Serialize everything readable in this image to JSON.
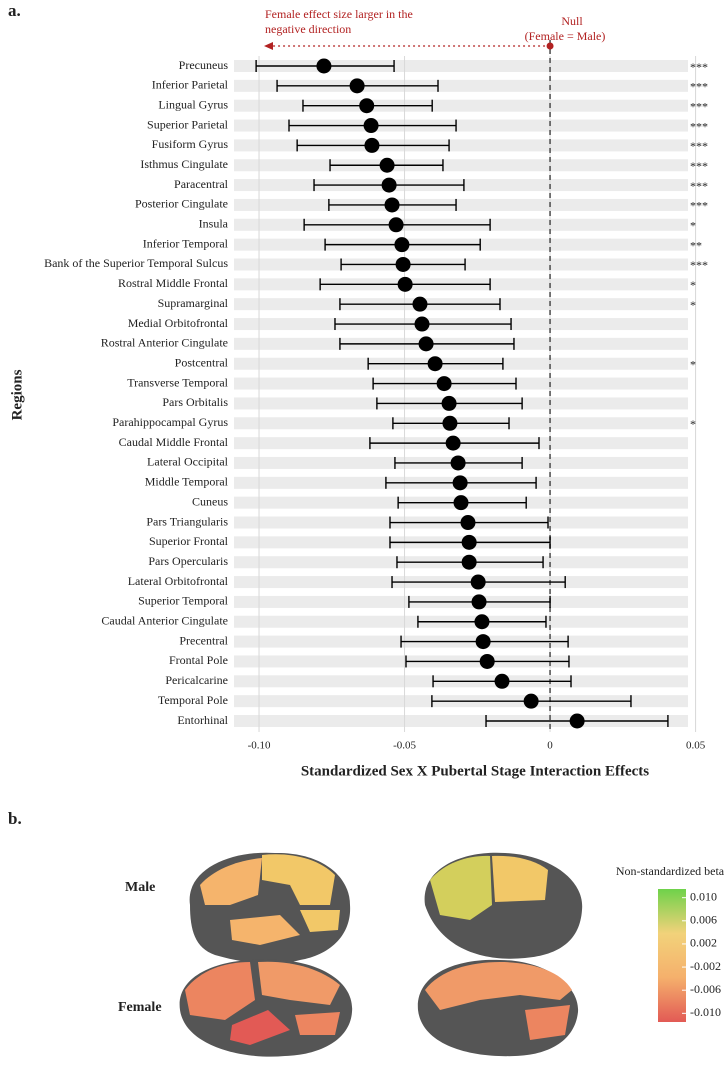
{
  "panels": [
    "a.",
    "b."
  ],
  "chart_data": [
    {
      "type": "forest",
      "x_label": "Standardized Sex X Pubertal Stage Interaction Effects",
      "y_label": "Regions",
      "annotations": [
        "Female effect size larger in the",
        "negative direction",
        "Null",
        "(Female = Male)"
      ],
      "annotation_color": "#b22222",
      "reference_line": 0,
      "color": "#000000",
      "categories": [
        "Precuneus",
        "Inferior Parietal",
        "Lingual Gyrus",
        "Superior Parietal",
        "Fusiform Gyrus",
        "Isthmus Cingulate",
        "Paracentral",
        "Posterior Cingulate",
        "Insula",
        "Inferior Temporal",
        "Bank of the Superior Temporal Sulcus",
        "Rostral Middle Frontal",
        "Supramarginal",
        "Medial Orbitofrontal",
        "Rostral Anterior Cingulate",
        "Postcentral",
        "Transverse Temporal",
        "Pars Orbitalis",
        "Parahippocampal Gyrus",
        "Caudal Middle Frontal",
        "Lateral Occipital",
        "Middle Temporal",
        "Cuneus",
        "Pars Triangularis",
        "Superior Frontal",
        "Pars Opercularis",
        "Lateral Orbitofrontal",
        "Superior Temporal",
        "Caudal Anterior Cingulate",
        "Precentral",
        "Frontal Pole",
        "Pericalcarine",
        "Temporal Pole",
        "Entorhinal"
      ],
      "values": [
        -0.0777,
        -0.0663,
        -0.063,
        -0.0615,
        -0.0612,
        -0.056,
        -0.0553,
        -0.0543,
        -0.0529,
        -0.0509,
        -0.0505,
        -0.0498,
        -0.0447,
        -0.044,
        -0.0426,
        -0.0395,
        -0.0364,
        -0.0347,
        -0.0344,
        -0.0333,
        -0.0316,
        -0.0309,
        -0.0306,
        -0.0282,
        -0.0278,
        -0.0278,
        -0.0247,
        -0.0244,
        -0.0234,
        -0.023,
        -0.0216,
        -0.0165,
        -0.0065,
        0.0093
      ],
      "low": [
        -0.101,
        -0.0938,
        -0.0849,
        -0.0897,
        -0.0869,
        -0.0756,
        -0.0811,
        -0.076,
        -0.0845,
        -0.0773,
        -0.0718,
        -0.079,
        -0.0722,
        -0.0739,
        -0.0722,
        -0.0625,
        -0.0608,
        -0.0595,
        -0.054,
        -0.0619,
        -0.0533,
        -0.0564,
        -0.0522,
        -0.055,
        -0.055,
        -0.0526,
        -0.0543,
        -0.0485,
        -0.0454,
        -0.0512,
        -0.0495,
        -0.0402,
        -0.0406,
        -0.022
      ],
      "high": [
        -0.0536,
        -0.0385,
        -0.0405,
        -0.0323,
        -0.0347,
        -0.0368,
        -0.0296,
        -0.0323,
        -0.0206,
        -0.024,
        -0.0292,
        -0.0206,
        -0.0172,
        -0.0134,
        -0.0124,
        -0.0162,
        -0.0117,
        -0.0096,
        -0.0141,
        -0.0038,
        -0.0096,
        -0.0048,
        -0.0082,
        -0.0007,
        0,
        -0.0024,
        0.0052,
        0,
        -0.0014,
        0.0062,
        0.0065,
        0.0072,
        0.0278,
        0.0405
      ],
      "significance": [
        "***",
        "***",
        "***",
        "***",
        "***",
        "***",
        "***",
        "***",
        "*",
        "**",
        "***",
        "*",
        "*",
        null,
        null,
        "*",
        null,
        null,
        "*",
        null,
        null,
        null,
        null,
        null,
        null,
        null,
        null,
        null,
        null,
        null,
        null,
        null,
        null,
        null
      ],
      "xlim": [
        -0.1086,
        0.0474
      ],
      "xticks": [
        {
          "value": -0.1,
          "label": "-0.10"
        },
        -0.05,
        0,
        0.05
      ],
      "grid": true
    },
    {
      "type": "colorbar",
      "title": "Non-standardized beta",
      "row_labels": [
        "Male",
        "Female"
      ],
      "colors": [
        "#e25a55",
        "#f5b06c",
        "#f2d27a",
        "#6fd24a"
      ],
      "ylim": [
        -0.0115,
        0.0115
      ],
      "yticks": [
        {
          "value": 0.01,
          "label": "0.010"
        },
        {
          "value": 0.006,
          "label": "0.006"
        },
        {
          "value": 0.002,
          "label": "0.002"
        },
        {
          "value": -0.002,
          "label": "-0.002"
        },
        {
          "value": -0.006,
          "label": "-0.006"
        },
        {
          "value": -0.01,
          "label": "-0.010"
        }
      ]
    }
  ]
}
